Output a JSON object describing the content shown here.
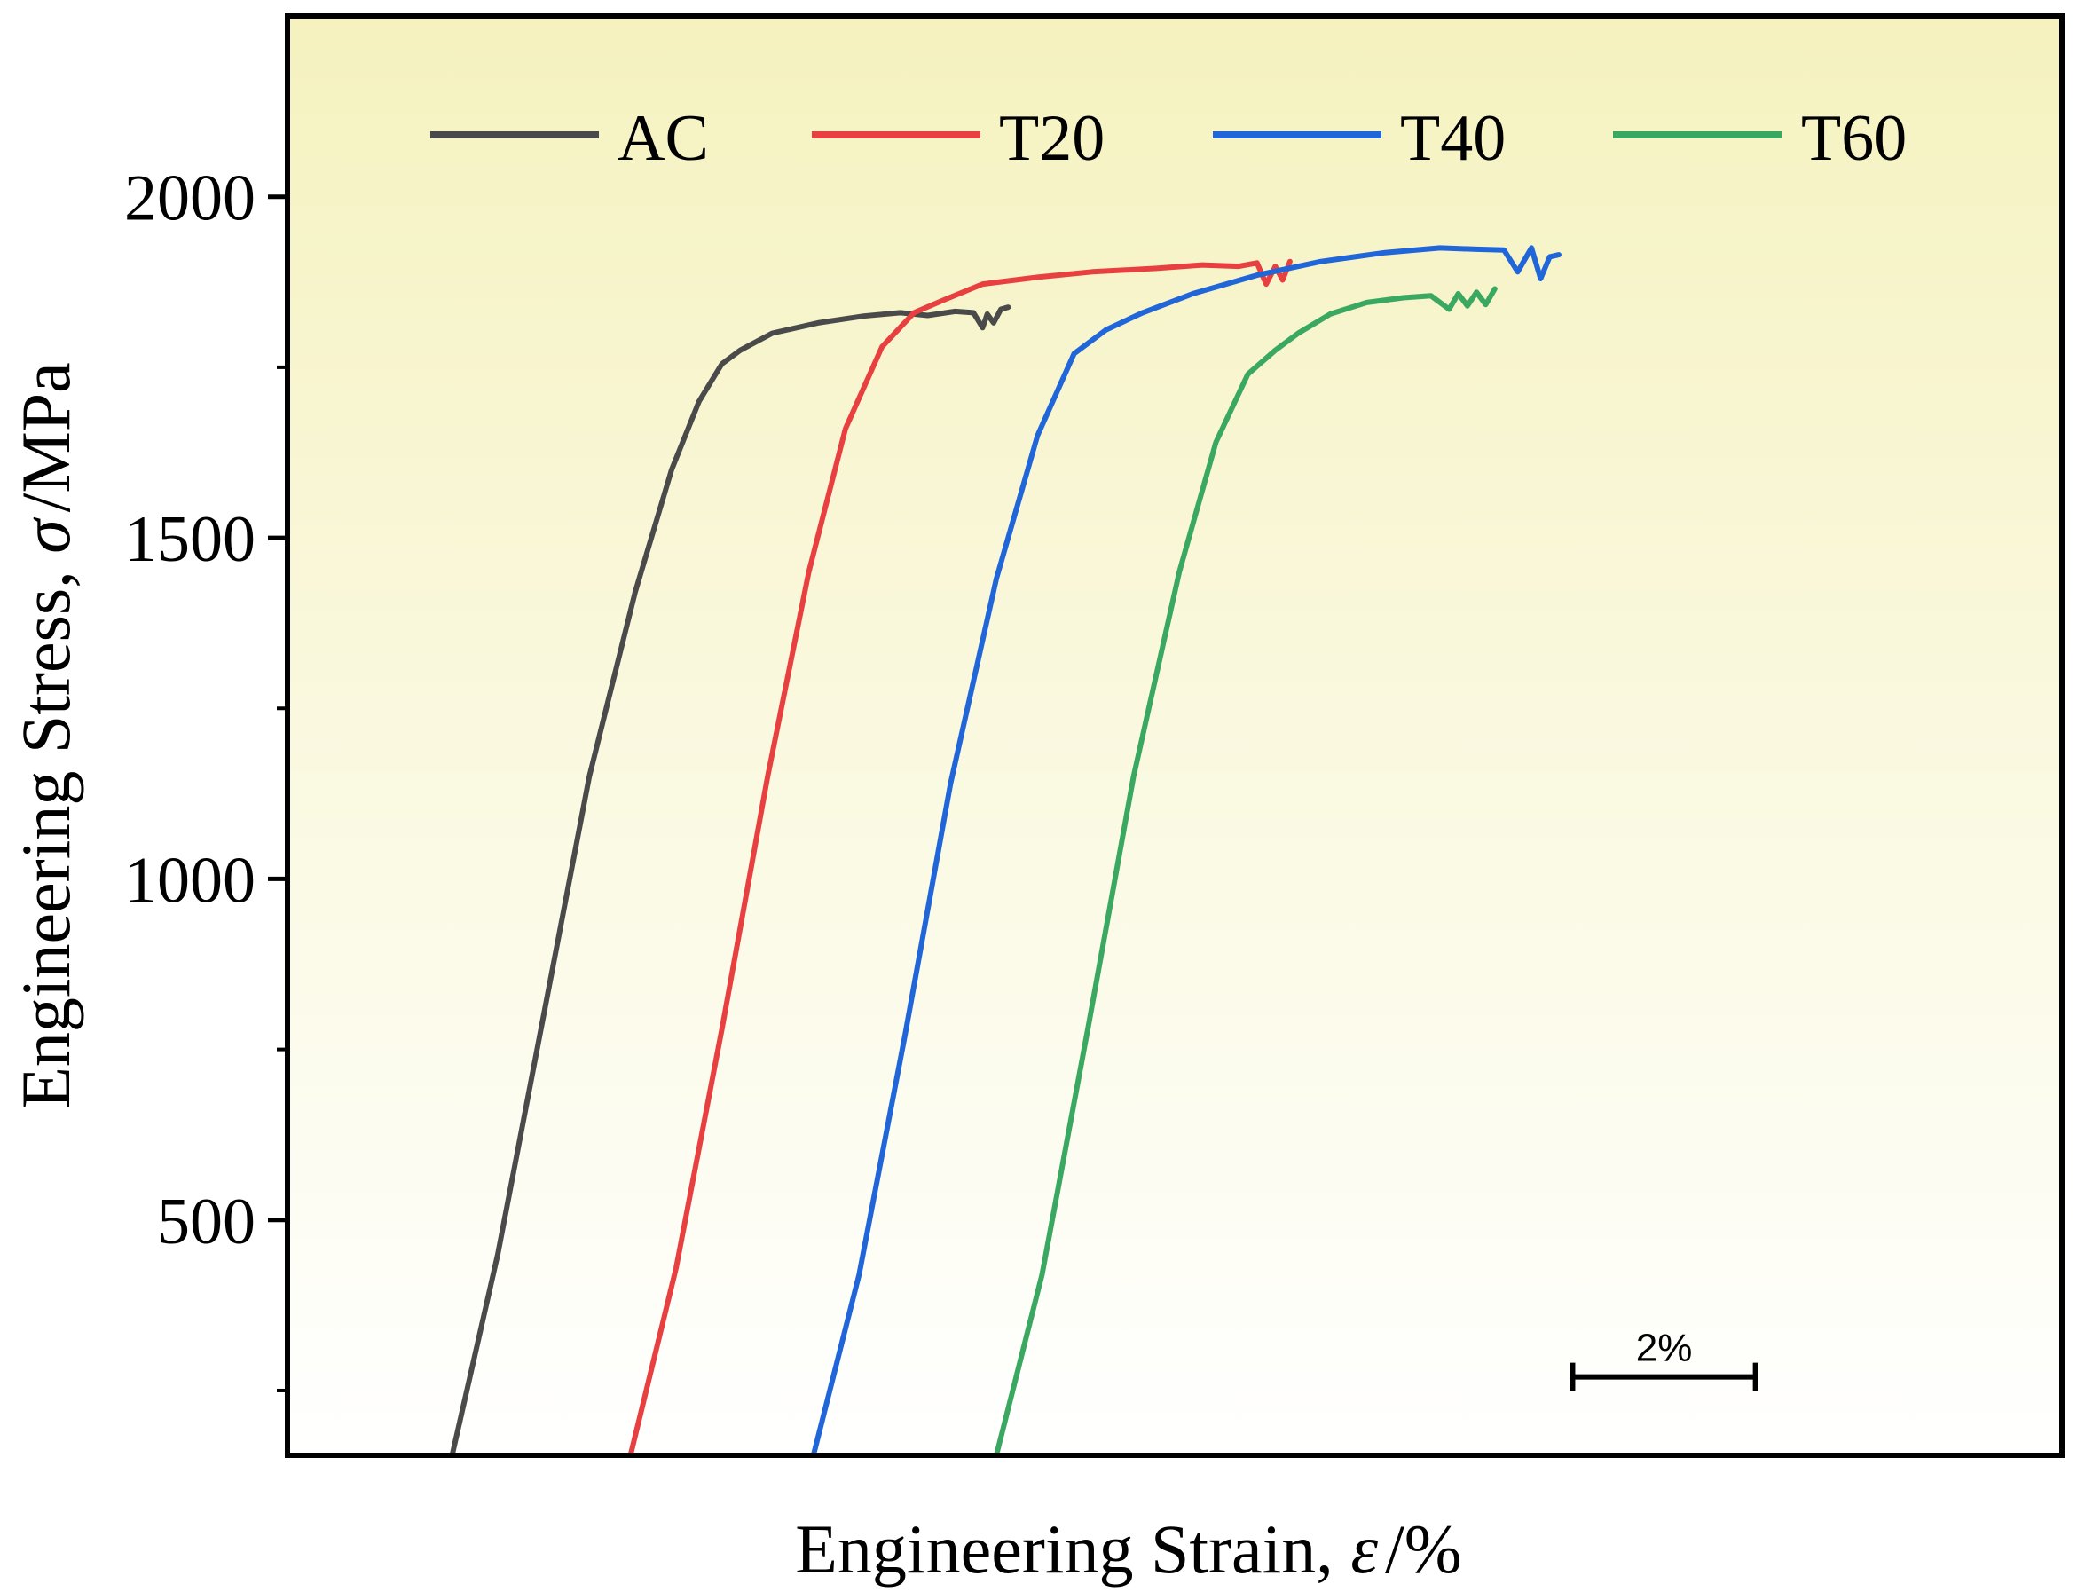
{
  "chart_data": {
    "type": "line",
    "title": "",
    "xlabel": {
      "prefix": "Engineering Strain, ",
      "symbol": "ε",
      "suffix": "/%"
    },
    "ylabel": {
      "prefix": "Engineering Stress, ",
      "symbol": "σ",
      "suffix": "/MPa"
    },
    "x_axis_note": "no x tick labels; curves offset horizontally for clarity",
    "xlim": [
      0,
      19.4
    ],
    "ylim": [
      155,
      2265
    ],
    "yticks_major": [
      500,
      1000,
      1500,
      2000
    ],
    "yticks_minor": [
      250,
      750,
      1250,
      1750
    ],
    "grid": false,
    "legend_position": "top",
    "background_gradient": {
      "top": "#f5f2bf",
      "bottom": "#ffffff"
    },
    "scale_bar": {
      "label": "2%",
      "length": 2,
      "start_x": 14.05,
      "stress_level": 270
    },
    "series": [
      {
        "name": "AC",
        "color": "#4a4a4a",
        "x": [
          1.8,
          2.3,
          2.8,
          3.3,
          3.8,
          4.2,
          4.5,
          4.75,
          4.95,
          5.3,
          5.8,
          6.3,
          6.7,
          7.0,
          7.3,
          7.5,
          7.6,
          7.65,
          7.72,
          7.8,
          7.88
        ],
        "y": [
          155,
          450,
          800,
          1150,
          1420,
          1600,
          1700,
          1755,
          1775,
          1800,
          1815,
          1825,
          1830,
          1826,
          1832,
          1830,
          1808,
          1828,
          1815,
          1835,
          1838
        ]
      },
      {
        "name": "T20",
        "color": "#e84040",
        "x": [
          3.75,
          4.25,
          4.75,
          5.25,
          5.7,
          6.1,
          6.5,
          6.85,
          7.2,
          7.6,
          8.2,
          8.8,
          9.5,
          10.0,
          10.4,
          10.6,
          10.7,
          10.8,
          10.88,
          10.96
        ],
        "y": [
          155,
          430,
          780,
          1150,
          1450,
          1660,
          1780,
          1830,
          1850,
          1872,
          1882,
          1890,
          1895,
          1900,
          1898,
          1903,
          1872,
          1898,
          1878,
          1905
        ]
      },
      {
        "name": "T40",
        "color": "#2166d9",
        "x": [
          5.75,
          6.25,
          6.75,
          7.25,
          7.75,
          8.2,
          8.6,
          8.95,
          9.35,
          9.9,
          10.6,
          11.3,
          12.0,
          12.6,
          13.0,
          13.3,
          13.45,
          13.6,
          13.7,
          13.8,
          13.9
        ],
        "y": [
          155,
          420,
          770,
          1140,
          1440,
          1650,
          1770,
          1805,
          1830,
          1858,
          1885,
          1905,
          1918,
          1925,
          1923,
          1922,
          1890,
          1925,
          1880,
          1912,
          1915
        ]
      },
      {
        "name": "T60",
        "color": "#3aa861",
        "x": [
          7.75,
          8.25,
          8.75,
          9.25,
          9.75,
          10.15,
          10.5,
          10.8,
          11.05,
          11.4,
          11.8,
          12.2,
          12.5,
          12.7,
          12.8,
          12.9,
          13.0,
          13.1,
          13.2
        ],
        "y": [
          155,
          420,
          780,
          1150,
          1450,
          1640,
          1740,
          1775,
          1800,
          1828,
          1845,
          1852,
          1855,
          1835,
          1858,
          1840,
          1860,
          1842,
          1865
        ]
      }
    ]
  }
}
